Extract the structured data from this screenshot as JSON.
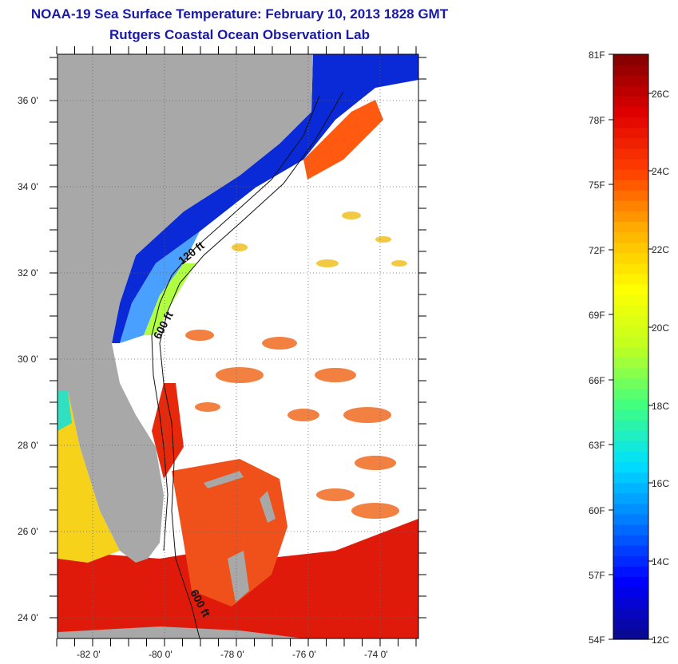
{
  "header": {
    "title": "NOAA-19 Sea Surface Temperature:  February 10, 2013 1828 GMT",
    "subtitle": "Rutgers Coastal Ocean Observation Lab"
  },
  "map": {
    "lat_range": [
      23,
      37
    ],
    "lon_range": [
      -83,
      -73
    ],
    "lat_ticks": [
      "36 0'",
      "34 0'",
      "32 0'",
      "30 0'",
      "28 0'",
      "26 0'",
      "24 0'"
    ],
    "lon_ticks": [
      "-82 0'",
      "-80 0'",
      "-78 0'",
      "-76 0'",
      "-74 0'"
    ],
    "contours": [
      {
        "label": "120 ft"
      },
      {
        "label": "600 ft"
      },
      {
        "label": "600 ft"
      }
    ],
    "land_color": "#a8a8a8"
  },
  "colorbar": {
    "fahrenheit": [
      "81F",
      "78F",
      "75F",
      "72F",
      "69F",
      "66F",
      "63F",
      "60F",
      "57F",
      "54F"
    ],
    "celsius": [
      "26C",
      "24C",
      "22C",
      "20C",
      "18C",
      "16C",
      "14C",
      "12C"
    ],
    "stops": [
      "#0a0a8c",
      "#0000ff",
      "#0078ff",
      "#00e0ff",
      "#40ff80",
      "#c0ff20",
      "#ffff00",
      "#ffb000",
      "#ff4000",
      "#e00000",
      "#800000"
    ]
  }
}
